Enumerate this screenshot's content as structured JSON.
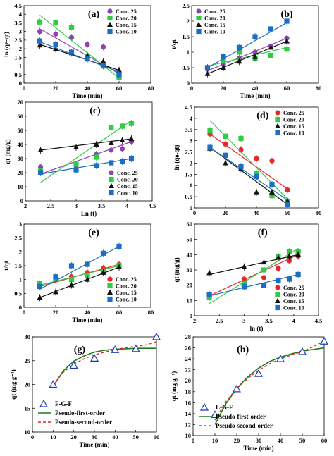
{
  "chart_data": [
    {
      "panel_label": "(a)",
      "type": "scatter",
      "xlabel": "Time (min)",
      "ylabel": "ln (qe-qt)",
      "xlim": [
        0,
        80
      ],
      "ylim": [
        0,
        4.5
      ],
      "xticks": [
        0,
        20,
        40,
        60,
        80
      ],
      "yticks": [
        0,
        0.5,
        1,
        1.5,
        2,
        2.5,
        3,
        3.5,
        4,
        4.5
      ],
      "x": [
        10,
        20,
        30,
        40,
        50,
        60
      ],
      "legend_position": "top-right",
      "series": [
        {
          "name": "Conc. 25",
          "marker": "circle",
          "color": "#8e44ad",
          "values": [
            3.0,
            2.85,
            2.65,
            2.25,
            2.1,
            0.55
          ],
          "fit": [
            3.15,
            0.55
          ]
        },
        {
          "name": "Conc. 20",
          "marker": "square",
          "color": "#2ecc40",
          "values": [
            3.55,
            3.5,
            3.25,
            1.55,
            1.1,
            0.35
          ],
          "fit": [
            3.95,
            0.3
          ]
        },
        {
          "name": "Conc. 15",
          "marker": "triangle",
          "color": "#111111",
          "values": [
            2.2,
            2.0,
            1.75,
            1.6,
            1.25,
            0.75
          ],
          "fit": [
            2.25,
            0.75
          ]
        },
        {
          "name": "Conc. 10",
          "marker": "square",
          "color": "#1a6fc4",
          "values": [
            2.45,
            2.25,
            1.8,
            1.4,
            1.0,
            0.5
          ],
          "fit": [
            2.4,
            0.65
          ]
        }
      ]
    },
    {
      "panel_label": "(b)",
      "type": "scatter",
      "xlabel": "Time (min)",
      "ylabel": "t/qt",
      "xlim": [
        0,
        80
      ],
      "ylim": [
        0,
        2.5
      ],
      "xticks": [
        0,
        20,
        40,
        60,
        80
      ],
      "yticks": [
        0,
        0.5,
        1,
        1.5,
        2,
        2.5
      ],
      "x": [
        10,
        20,
        30,
        40,
        50,
        60
      ],
      "legend_position": "top-left",
      "series": [
        {
          "name": "Conc. 25",
          "marker": "circle",
          "color": "#8e44ad",
          "values": [
            0.45,
            0.6,
            0.8,
            1.0,
            1.2,
            1.45
          ],
          "fit": [
            0.4,
            1.45
          ]
        },
        {
          "name": "Conc. 20",
          "marker": "square",
          "color": "#2ecc40",
          "values": [
            0.5,
            0.75,
            1.0,
            0.8,
            0.9,
            1.1
          ],
          "fit": [
            0.55,
            1.15
          ]
        },
        {
          "name": "Conc. 15",
          "marker": "triangle",
          "color": "#111111",
          "values": [
            0.3,
            0.5,
            0.7,
            0.85,
            1.15,
            1.35
          ],
          "fit": [
            0.3,
            1.35
          ]
        },
        {
          "name": "Conc. 10",
          "marker": "square",
          "color": "#1a6fc4",
          "values": [
            0.5,
            0.85,
            1.15,
            1.5,
            1.75,
            2.0
          ],
          "fit": [
            0.5,
            1.95
          ]
        }
      ]
    },
    {
      "panel_label": "(c)",
      "type": "scatter",
      "xlabel": "Ln (t)",
      "ylabel": "qt (mg/g)",
      "xlim": [
        2,
        4.5
      ],
      "ylim": [
        0,
        70
      ],
      "xticks": [
        2,
        2.5,
        3,
        3.5,
        4,
        4.5
      ],
      "yticks": [
        0,
        10,
        20,
        30,
        40,
        50,
        60,
        70
      ],
      "x": [
        2.3,
        3.0,
        3.4,
        3.69,
        3.91,
        4.09
      ],
      "legend_position": "bottom-right",
      "series": [
        {
          "name": "Conc. 25",
          "marker": "circle",
          "color": "#8e44ad",
          "values": [
            24,
            25,
            33,
            36,
            37,
            42
          ],
          "fit": [
            19,
            42
          ]
        },
        {
          "name": "Conc. 20",
          "marker": "square",
          "color": "#2ecc40",
          "values": [
            21,
            26,
            31,
            52,
            53,
            55
          ],
          "fit": [
            13,
            57
          ]
        },
        {
          "name": "Conc. 15",
          "marker": "triangle",
          "color": "#111111",
          "values": [
            36,
            38,
            40,
            41,
            43,
            44
          ],
          "fit": [
            36,
            44
          ]
        },
        {
          "name": "Conc. 10",
          "marker": "square",
          "color": "#1a6fc4",
          "values": [
            20,
            22,
            25,
            27,
            28,
            30
          ],
          "fit": [
            19,
            30
          ]
        }
      ]
    },
    {
      "panel_label": "(d)",
      "type": "scatter",
      "xlabel": "",
      "ylabel": "ln (qe-qt)",
      "xlim": [
        0,
        80
      ],
      "ylim": [
        0,
        4.5
      ],
      "xticks": [
        0,
        20,
        40,
        60,
        80
      ],
      "yticks": [
        0,
        0.5,
        1,
        1.5,
        2,
        2.5,
        3,
        3.5,
        4,
        4.5
      ],
      "x": [
        10,
        20,
        30,
        40,
        50,
        60
      ],
      "legend_position": "top-right",
      "series": [
        {
          "name": "Conc. 25",
          "marker": "circle",
          "color": "#e8262a",
          "values": [
            3.3,
            2.85,
            2.6,
            2.2,
            2.1,
            0.8
          ],
          "fit": [
            3.3,
            0.85
          ]
        },
        {
          "name": "Conc. 20",
          "marker": "square",
          "color": "#2ecc40",
          "values": [
            3.45,
            3.2,
            3.1,
            1.55,
            0.55,
            0.3
          ],
          "fit": [
            3.9,
            0.4
          ]
        },
        {
          "name": "Conc. 15",
          "marker": "triangle",
          "color": "#111111",
          "values": [
            2.65,
            2.0,
            1.75,
            0.7,
            0.7,
            0.3
          ],
          "fit": [
            2.7,
            0.15
          ]
        },
        {
          "name": "Conc. 10",
          "marker": "square",
          "color": "#1a6fc4",
          "values": [
            2.7,
            2.35,
            1.85,
            1.4,
            1.05,
            0.15
          ],
          "fit": [
            2.7,
            0.35
          ]
        }
      ]
    },
    {
      "panel_label": "(e)",
      "type": "scatter",
      "xlabel": "Time (min)",
      "ylabel": "t/qt",
      "xlim": [
        0,
        80
      ],
      "ylim": [
        0,
        3
      ],
      "xticks": [
        0,
        20,
        40,
        60,
        80
      ],
      "yticks": [
        0,
        0.5,
        1,
        1.5,
        2,
        2.5,
        3
      ],
      "x": [
        10,
        20,
        30,
        40,
        50,
        60
      ],
      "legend_position": "bottom-right",
      "series": [
        {
          "name": "Conc. 25",
          "marker": "circle",
          "color": "#e8262a",
          "values": [
            0.8,
            1.0,
            1.1,
            1.25,
            1.4,
            1.55
          ],
          "fit": [
            0.75,
            1.55
          ]
        },
        {
          "name": "Conc. 20",
          "marker": "square",
          "color": "#2ecc40",
          "values": [
            0.85,
            1.05,
            1.0,
            1.15,
            1.3,
            1.5
          ],
          "fit": [
            0.8,
            1.5
          ]
        },
        {
          "name": "Conc. 15",
          "marker": "triangle",
          "color": "#111111",
          "values": [
            0.35,
            0.55,
            0.8,
            1.0,
            1.25,
            1.45
          ],
          "fit": [
            0.35,
            1.45
          ]
        },
        {
          "name": "Conc. 10",
          "marker": "square",
          "color": "#1a6fc4",
          "values": [
            0.75,
            1.1,
            1.5,
            1.55,
            1.95,
            2.2
          ],
          "fit": [
            0.65,
            2.2
          ]
        }
      ]
    },
    {
      "panel_label": "(f)",
      "type": "scatter",
      "xlabel": "ln (t)",
      "ylabel": "qt (mg/g)",
      "xlim": [
        2,
        4.5
      ],
      "ylim": [
        0,
        60
      ],
      "xticks": [
        2,
        2.5,
        3,
        3.5,
        4,
        4.5
      ],
      "yticks": [
        0,
        10,
        20,
        30,
        40,
        50,
        60
      ],
      "x": [
        2.3,
        3.0,
        3.4,
        3.69,
        3.91,
        4.09
      ],
      "legend_position": "bottom-right",
      "series": [
        {
          "name": "Conc. 25",
          "marker": "circle",
          "color": "#e8262a",
          "values": [
            14,
            24,
            25,
            31,
            36,
            39
          ],
          "fit": [
            13,
            40
          ]
        },
        {
          "name": "Conc. 20",
          "marker": "square",
          "color": "#2ecc40",
          "values": [
            12,
            21,
            30,
            39,
            42,
            42
          ],
          "fit": [
            8,
            44
          ]
        },
        {
          "name": "Conc. 15",
          "marker": "triangle",
          "color": "#111111",
          "values": [
            28,
            32,
            35,
            38,
            39,
            40
          ],
          "fit": [
            27,
            40
          ]
        },
        {
          "name": "Conc. 10",
          "marker": "square",
          "color": "#1a6fc4",
          "values": [
            14,
            19,
            20,
            23,
            24,
            27
          ],
          "fit": [
            13,
            27
          ]
        }
      ]
    },
    {
      "panel_label": "(g)",
      "type": "line",
      "xlabel": "Time  (min)",
      "ylabel": "qt (mg g⁻¹)",
      "xlim": [
        0,
        60
      ],
      "ylim": [
        10,
        30
      ],
      "xticks": [
        0,
        10,
        20,
        30,
        40,
        50,
        60
      ],
      "yticks": [
        10,
        15,
        20,
        25,
        30
      ],
      "x": [
        10,
        20,
        30,
        40,
        50,
        60
      ],
      "legend_position": "bottom-right",
      "data_series": {
        "name": "F-G-F",
        "values": [
          20,
          24,
          25.5,
          27.3,
          27.5,
          30
        ]
      },
      "pfo_curve": {
        "name": "Pseudo-first-order",
        "x": [
          10,
          15,
          20,
          25,
          30,
          35,
          40,
          45,
          50,
          55,
          60
        ],
        "values": [
          19.6,
          22.9,
          24.9,
          26.0,
          26.8,
          27.2,
          27.4,
          27.5,
          27.6,
          27.6,
          27.6
        ]
      },
      "pso_curve": {
        "name": "Pseudo-second-order",
        "x": [
          10,
          15,
          20,
          25,
          30,
          35,
          40,
          45,
          50,
          55,
          60
        ],
        "values": [
          19.9,
          22.6,
          24.3,
          25.4,
          26.2,
          26.8,
          27.3,
          27.7,
          28.0,
          28.3,
          29.0
        ]
      }
    },
    {
      "panel_label": "(h)",
      "type": "line",
      "xlabel": "Time  (min)",
      "ylabel": "qt (mg g⁻¹)",
      "xlim": [
        0,
        60
      ],
      "ylim": [
        10,
        28
      ],
      "xticks": [
        0,
        10,
        20,
        30,
        40,
        50,
        60
      ],
      "yticks": [
        10,
        12,
        14,
        16,
        18,
        20,
        22,
        24,
        26,
        28
      ],
      "x": [
        10,
        20,
        30,
        40,
        50,
        60
      ],
      "legend_position": "bottom-right",
      "data_series": {
        "name": "L-G-F",
        "values": [
          13.8,
          18.5,
          21.3,
          24.0,
          25.3,
          27.2
        ]
      },
      "pfo_curve": {
        "name": "Pseudo-first-order",
        "x": [
          10,
          15,
          20,
          25,
          30,
          35,
          40,
          45,
          50,
          55,
          60
        ],
        "values": [
          12.0,
          15.8,
          18.6,
          20.7,
          22.3,
          23.5,
          24.3,
          24.9,
          25.4,
          25.7,
          26.0
        ]
      },
      "pso_curve": {
        "name": "Pseudo-second-order",
        "x": [
          10,
          15,
          20,
          25,
          30,
          35,
          40,
          45,
          50,
          55,
          60
        ],
        "values": [
          12.8,
          16.2,
          18.6,
          20.4,
          21.9,
          23.1,
          24.0,
          24.7,
          25.3,
          26.2,
          27.2
        ]
      }
    }
  ]
}
